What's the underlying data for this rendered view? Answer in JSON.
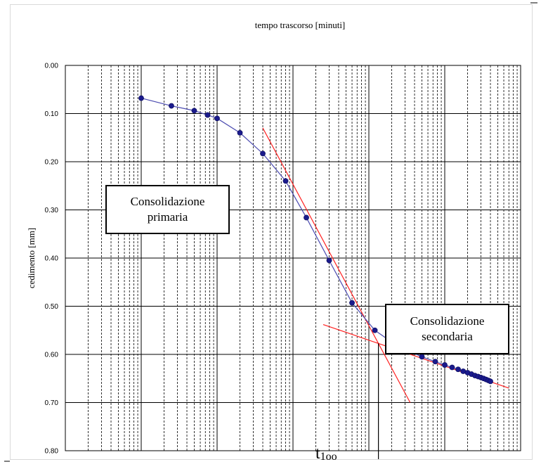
{
  "chart_data": {
    "type": "scatter",
    "title": "tempo trascorso [minuti]",
    "xlabel": "",
    "ylabel": "cedimento [mm]",
    "x_scale": "log",
    "xlim": [
      0.01,
      10000
    ],
    "ylim": [
      0,
      0.8
    ],
    "y_inverted": true,
    "y_ticks": [
      "0.00",
      "0.10",
      "0.20",
      "0.30",
      "0.40",
      "0.50",
      "0.60",
      "0.70",
      "0.80"
    ],
    "grid": true,
    "series": [
      {
        "name": "",
        "color": "#1a1a8c",
        "x": [
          0.1,
          0.25,
          0.5,
          0.75,
          1,
          2,
          4,
          8,
          15,
          30,
          60,
          120,
          240,
          500,
          750,
          1000,
          1250,
          1500,
          1750,
          2000,
          2250,
          2500,
          2750,
          3000,
          3250,
          3500,
          3750,
          4000
        ],
        "y": [
          0.068,
          0.084,
          0.094,
          0.103,
          0.11,
          0.14,
          0.183,
          0.24,
          0.316,
          0.405,
          0.493,
          0.55,
          0.583,
          0.605,
          0.615,
          0.622,
          0.627,
          0.631,
          0.635,
          0.638,
          0.641,
          0.644,
          0.646,
          0.648,
          0.65,
          0.652,
          0.654,
          0.656
        ]
      }
    ],
    "tangent_lines": [
      {
        "color": "#ff2020",
        "x": [
          4,
          350
        ],
        "y": [
          0.13,
          0.7
        ]
      },
      {
        "color": "#ff2020",
        "x": [
          25,
          7000
        ],
        "y": [
          0.538,
          0.67
        ]
      }
    ],
    "t100_x": 90,
    "annotations": [
      {
        "id": "primaria",
        "lines": [
          "Consolidazione",
          "primaria"
        ]
      },
      {
        "id": "secondaria",
        "lines": [
          "Consolidazione",
          "secondaria"
        ]
      }
    ],
    "t100_label": {
      "base": "t",
      "sub": "1oo"
    }
  }
}
